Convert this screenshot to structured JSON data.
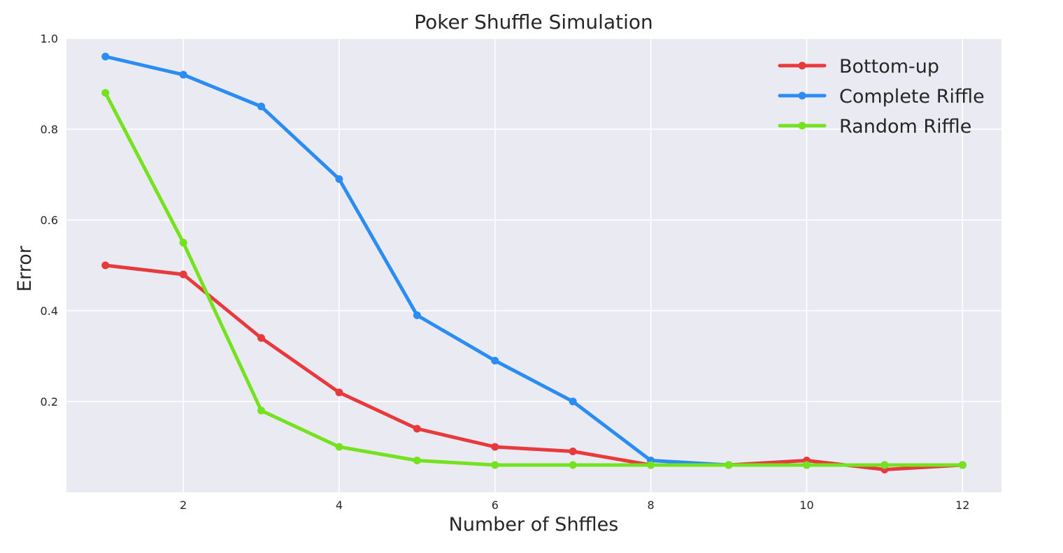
{
  "chart_data": {
    "type": "line",
    "title": "Poker Shuffle Simulation",
    "xlabel": "Number of Shffles",
    "ylabel": "Error",
    "x": [
      1,
      2,
      3,
      4,
      5,
      6,
      7,
      8,
      9,
      10,
      11,
      12
    ],
    "xlim": [
      0.5,
      12.5
    ],
    "ylim": [
      0.0,
      1.0
    ],
    "xticks": [
      2,
      4,
      6,
      8,
      10,
      12
    ],
    "xtick_labels": [
      "2",
      "4",
      "6",
      "8",
      "10",
      "12"
    ],
    "yticks": [
      0.2,
      0.4,
      0.6,
      0.8,
      1.0
    ],
    "ytick_labels": [
      "0.2",
      "0.4",
      "0.6",
      "0.8",
      "1.0"
    ],
    "grid": true,
    "legend_position": "top-right",
    "background_color": "#eaeaf2",
    "series": [
      {
        "name": "Bottom-up",
        "color": "#e8393c",
        "values": [
          0.5,
          0.48,
          0.34,
          0.22,
          0.14,
          0.1,
          0.09,
          0.06,
          0.06,
          0.07,
          0.05,
          0.06
        ]
      },
      {
        "name": "Complete Riffle",
        "color": "#2a8cf5",
        "values": [
          0.96,
          0.92,
          0.85,
          0.69,
          0.39,
          0.29,
          0.2,
          0.07,
          0.06,
          0.06,
          0.06,
          0.06
        ]
      },
      {
        "name": "Random Riffle",
        "color": "#74e21e",
        "values": [
          0.88,
          0.55,
          0.18,
          0.1,
          0.07,
          0.06,
          0.06,
          0.06,
          0.06,
          0.06,
          0.06,
          0.06
        ]
      }
    ]
  }
}
